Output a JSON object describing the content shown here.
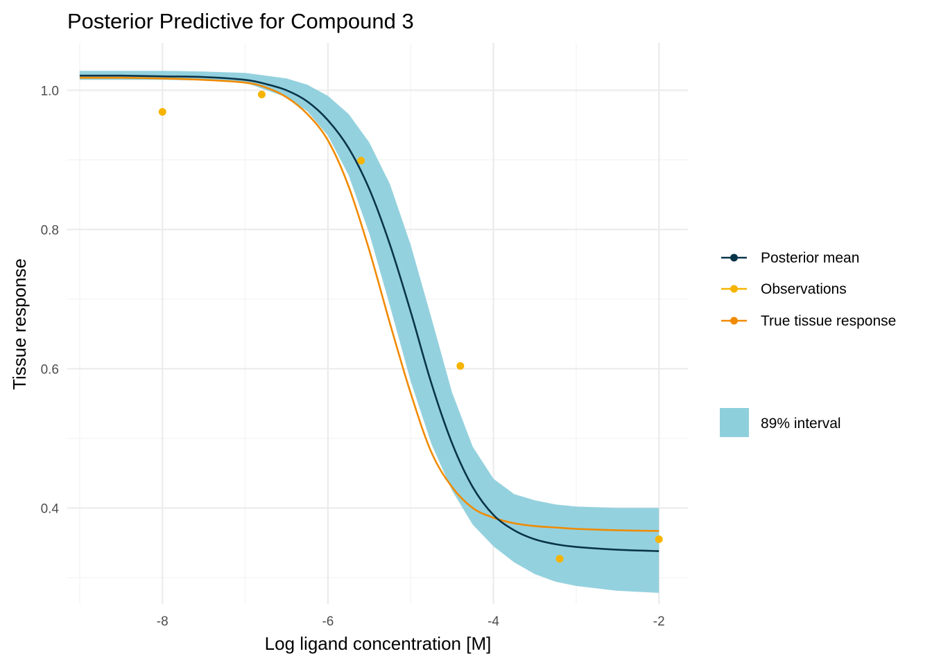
{
  "chart_data": {
    "type": "line",
    "title": "Posterior Predictive for Compound 3",
    "xlabel": "Log ligand concentration [M]",
    "ylabel": "Tissue response",
    "xlim": [
      -9.15,
      -1.65
    ],
    "ylim": [
      0.262,
      1.068
    ],
    "x_ticks": [
      -8,
      -6,
      -4,
      -2
    ],
    "x_tick_labels": [
      "-8",
      "-6",
      "-4",
      "-2"
    ],
    "y_ticks": [
      0.4,
      0.6,
      0.8,
      1.0
    ],
    "y_tick_labels": [
      "0.4",
      "0.6",
      "0.8",
      "1.0"
    ],
    "grid": true,
    "legend_position": "right",
    "series": [
      {
        "name": "Posterior mean",
        "color": "#08344a",
        "kind": "line",
        "x": [
          -9.0,
          -8.5,
          -8.0,
          -7.5,
          -7.0,
          -6.75,
          -6.5,
          -6.25,
          -6.0,
          -5.75,
          -5.5,
          -5.25,
          -5.0,
          -4.75,
          -4.5,
          -4.25,
          -4.0,
          -3.75,
          -3.5,
          -3.25,
          -3.0,
          -2.5,
          -2.0
        ],
        "y": [
          1.021,
          1.021,
          1.02,
          1.019,
          1.015,
          1.009,
          1.0,
          0.984,
          0.957,
          0.917,
          0.858,
          0.778,
          0.682,
          0.579,
          0.493,
          0.43,
          0.39,
          0.368,
          0.355,
          0.348,
          0.344,
          0.34,
          0.338
        ]
      },
      {
        "name": "Observations",
        "color": "#f6b400",
        "kind": "points",
        "x": [
          -8.0,
          -6.8,
          -5.6,
          -4.4,
          -3.2,
          -2.0
        ],
        "y": [
          0.969,
          0.994,
          0.899,
          0.604,
          0.327,
          0.355
        ]
      },
      {
        "name": "True tissue response",
        "color": "#f08a00",
        "kind": "line",
        "x": [
          -9.0,
          -8.5,
          -8.0,
          -7.5,
          -7.0,
          -6.75,
          -6.5,
          -6.25,
          -6.0,
          -5.75,
          -5.5,
          -5.25,
          -5.0,
          -4.75,
          -4.5,
          -4.25,
          -4.0,
          -3.75,
          -3.5,
          -3.25,
          -3.0,
          -2.5,
          -2.0
        ],
        "y": [
          1.018,
          1.018,
          1.017,
          1.015,
          1.011,
          1.004,
          0.99,
          0.966,
          0.928,
          0.862,
          0.77,
          0.665,
          0.565,
          0.48,
          0.43,
          0.4,
          0.386,
          0.378,
          0.374,
          0.372,
          0.37,
          0.368,
          0.367
        ]
      }
    ],
    "interval": {
      "name": "89% interval",
      "color": "#8ecfdc",
      "x": [
        -9.0,
        -8.0,
        -7.5,
        -7.0,
        -6.5,
        -6.25,
        -6.0,
        -5.75,
        -5.5,
        -5.25,
        -5.0,
        -4.75,
        -4.5,
        -4.25,
        -4.0,
        -3.75,
        -3.5,
        -3.25,
        -3.0,
        -2.5,
        -2.0
      ],
      "lower": [
        1.015,
        1.015,
        1.014,
        1.011,
        0.99,
        0.97,
        0.935,
        0.878,
        0.794,
        0.69,
        0.582,
        0.492,
        0.425,
        0.376,
        0.345,
        0.322,
        0.305,
        0.294,
        0.288,
        0.281,
        0.278
      ],
      "upper": [
        1.028,
        1.028,
        1.027,
        1.025,
        1.017,
        1.008,
        0.992,
        0.966,
        0.925,
        0.865,
        0.778,
        0.673,
        0.566,
        0.488,
        0.442,
        0.42,
        0.411,
        0.405,
        0.402,
        0.4,
        0.4
      ]
    }
  }
}
